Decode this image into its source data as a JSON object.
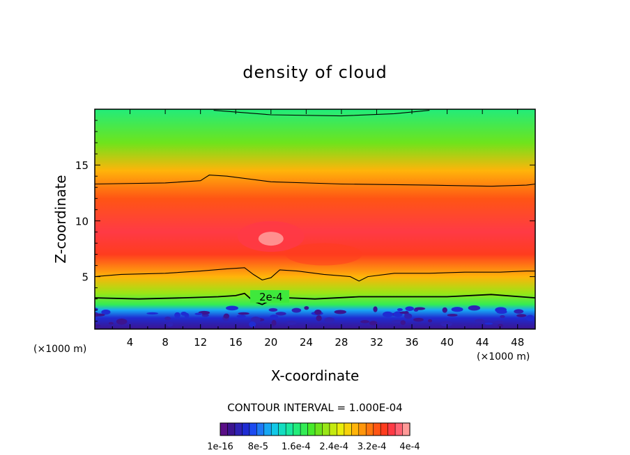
{
  "chart_data": {
    "type": "heatmap",
    "subtype": "filled-contour",
    "title": "density of cloud",
    "xlabel": "X-coordinate",
    "ylabel": "Z-coordinate",
    "x_unit": "(×1000 m)",
    "y_unit": "(×1000 m)",
    "xlim": [
      0,
      50
    ],
    "ylim": [
      0.3,
      20
    ],
    "x_ticks": [
      4,
      8,
      12,
      16,
      20,
      24,
      28,
      32,
      36,
      40,
      44,
      48
    ],
    "y_ticks": [
      5,
      10,
      15
    ],
    "contour_interval_text": "CONTOUR INTERVAL = 1.000E-04",
    "contour_label": "2e-4",
    "contour_lines": [
      {
        "level": "top",
        "points": [
          [
            13.5,
            19.9
          ],
          [
            20,
            19.5
          ],
          [
            28,
            19.4
          ],
          [
            34,
            19.6
          ],
          [
            38,
            19.9
          ]
        ]
      },
      {
        "level": "upper",
        "points": [
          [
            0,
            13.3
          ],
          [
            8,
            13.4
          ],
          [
            12,
            13.6
          ],
          [
            13,
            14.1
          ],
          [
            15,
            14.0
          ],
          [
            20,
            13.5
          ],
          [
            28,
            13.3
          ],
          [
            38,
            13.2
          ],
          [
            45,
            13.1
          ],
          [
            49,
            13.2
          ],
          [
            50,
            13.3
          ]
        ]
      },
      {
        "level": "middle",
        "points": [
          [
            0,
            5.0
          ],
          [
            3,
            5.2
          ],
          [
            8,
            5.3
          ],
          [
            12,
            5.5
          ],
          [
            15,
            5.7
          ],
          [
            17,
            5.8
          ],
          [
            18,
            5.2
          ],
          [
            19,
            4.7
          ],
          [
            20,
            4.9
          ],
          [
            21,
            5.6
          ],
          [
            23,
            5.5
          ],
          [
            26,
            5.2
          ],
          [
            29,
            5.0
          ],
          [
            30,
            4.6
          ],
          [
            31,
            5.0
          ],
          [
            34,
            5.3
          ],
          [
            38,
            5.3
          ],
          [
            42,
            5.4
          ],
          [
            46,
            5.4
          ],
          [
            49,
            5.5
          ],
          [
            50,
            5.5
          ]
        ]
      },
      {
        "level": "2e-4",
        "points": [
          [
            0,
            3.1
          ],
          [
            5,
            3.0
          ],
          [
            10,
            3.1
          ],
          [
            14,
            3.2
          ],
          [
            16,
            3.3
          ],
          [
            17,
            3.5
          ],
          [
            18,
            2.8
          ],
          [
            19,
            2.5
          ],
          [
            20,
            2.9
          ],
          [
            22,
            3.1
          ],
          [
            25,
            3.0
          ],
          [
            30,
            3.2
          ],
          [
            35,
            3.2
          ],
          [
            40,
            3.2
          ],
          [
            45,
            3.4
          ],
          [
            50,
            3.1
          ]
        ]
      }
    ],
    "colorbar": {
      "min": 1e-16,
      "max": 0.0004,
      "tick_labels": [
        "1e-16",
        "8e-5",
        "1.6e-4",
        "2.4e-4",
        "3.2e-4",
        "4e-4"
      ],
      "tick_positions": [
        0,
        0.2,
        0.4,
        0.6,
        0.8,
        1.0
      ],
      "colors": [
        "#5a0f86",
        "#3c148f",
        "#2f22b4",
        "#1f2cd2",
        "#1c4bf0",
        "#1e79f5",
        "#17a7f3",
        "#12c8e7",
        "#13ddc0",
        "#18e8a0",
        "#22ec7a",
        "#33ec55",
        "#48ea2a",
        "#6ee41c",
        "#99e616",
        "#c4ea10",
        "#e9ed0b",
        "#f6d20a",
        "#ffb40a",
        "#ff960c",
        "#ff760f",
        "#ff5514",
        "#ff3c1e",
        "#ff3a45",
        "#ff6474",
        "#ff9a98"
      ]
    },
    "value_bands_by_height": [
      {
        "z": 20,
        "value_fraction": 0.4
      },
      {
        "z": 17,
        "value_fraction": 0.52
      },
      {
        "z": 14.5,
        "value_fraction": 0.7
      },
      {
        "z": 12,
        "value_fraction": 0.82
      },
      {
        "z": 9,
        "value_fraction": 0.9
      },
      {
        "z": 7,
        "value_fraction": 0.86
      },
      {
        "z": 5,
        "value_fraction": 0.72
      },
      {
        "z": 3.5,
        "value_fraction": 0.58
      },
      {
        "z": 2.5,
        "value_fraction": 0.44
      },
      {
        "z": 2,
        "value_fraction": 0.25
      },
      {
        "z": 1.3,
        "value_fraction": 0.1
      },
      {
        "z": 0.3,
        "value_fraction": 0.02
      }
    ]
  }
}
